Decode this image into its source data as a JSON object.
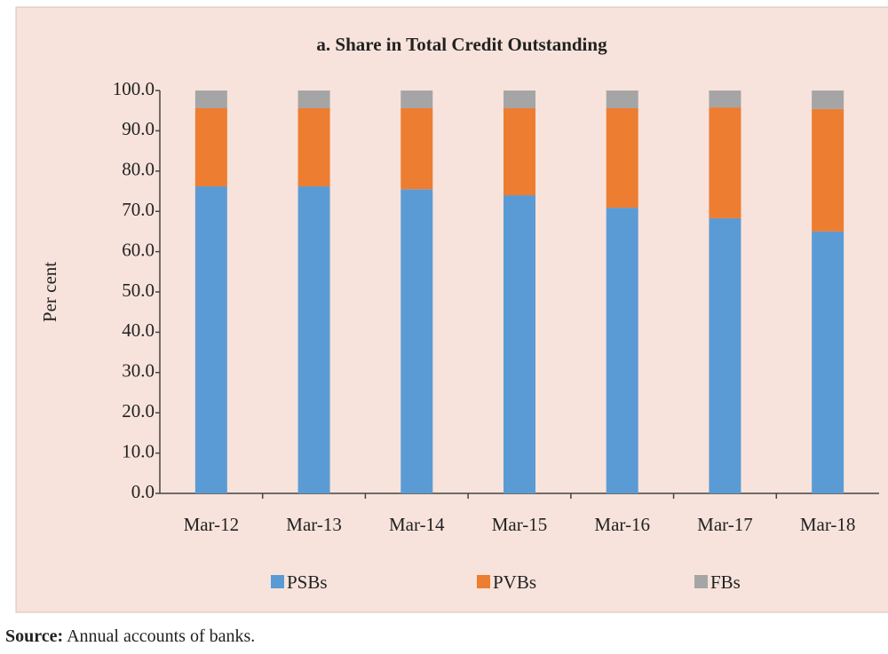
{
  "chart_data": {
    "type": "stacked_bar",
    "title": "a. Share in Total Credit  Outstanding",
    "y_label": "Per cent",
    "categories": [
      "Mar-12",
      "Mar-13",
      "Mar-14",
      "Mar-15",
      "Mar-16",
      "Mar-17",
      "Mar-18"
    ],
    "series": [
      {
        "name": "PSBs",
        "color": "#5b9bd5",
        "values": [
          76.2,
          76.2,
          75.5,
          74.0,
          70.9,
          68.3,
          65.0
        ]
      },
      {
        "name": "PVBs",
        "color": "#ed7d31",
        "values": [
          19.4,
          19.4,
          20.1,
          21.6,
          24.7,
          27.5,
          30.4
        ]
      },
      {
        "name": "FBs",
        "color": "#a5a5a5",
        "values": [
          4.4,
          4.4,
          4.4,
          4.4,
          4.4,
          4.2,
          4.6
        ]
      }
    ],
    "ylim": [
      0,
      100
    ],
    "yticks": [
      {
        "value": 0,
        "label": "0.0"
      },
      {
        "value": 10,
        "label": "10.0"
      },
      {
        "value": 20,
        "label": "20.0"
      },
      {
        "value": 30,
        "label": "30.0"
      },
      {
        "value": 40,
        "label": "40.0"
      },
      {
        "value": 50,
        "label": "50.0"
      },
      {
        "value": 60,
        "label": "60.0"
      },
      {
        "value": 70,
        "label": "70.0"
      },
      {
        "value": 80,
        "label": "80.0"
      },
      {
        "value": 90,
        "label": "90.0"
      },
      {
        "value": 100,
        "label": "100.0"
      }
    ],
    "grid": false,
    "legend": "bottom"
  },
  "source": {
    "label": "Source:",
    "text": "Annual accounts of banks."
  }
}
